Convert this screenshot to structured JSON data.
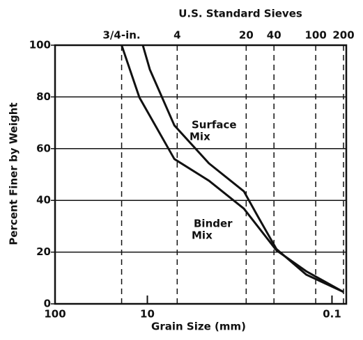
{
  "chart_data": {
    "type": "line",
    "top_title": "U.S. Standard Sieves",
    "x_label": "Grain Size (mm)",
    "y_label": "Percent Finer by Weight",
    "x_log": true,
    "xlim": [
      100,
      0.07
    ],
    "xticks": [
      100,
      10,
      0.1
    ],
    "top_ticks": [
      {
        "value": 19,
        "label": "3/4-in."
      },
      {
        "value": 4.75,
        "label": "4"
      },
      {
        "value": 0.85,
        "label": "20"
      },
      {
        "value": 0.425,
        "label": "40"
      },
      {
        "value": 0.15,
        "label": "100"
      },
      {
        "value": 0.075,
        "label": "200"
      }
    ],
    "ylim": [
      0,
      100
    ],
    "yticks": [
      0,
      20,
      40,
      60,
      80,
      100
    ],
    "grid": true,
    "series": [
      {
        "name": [
          "Surface",
          "Mix"
        ],
        "color": "#111111",
        "x": [
          11.2,
          9.4,
          5.1,
          2.15,
          0.9,
          0.64,
          0.4,
          0.19,
          0.075
        ],
        "values": [
          100,
          90.6,
          69,
          54.3,
          43.5,
          34,
          21.2,
          11.3,
          4.6
        ]
      },
      {
        "name": [
          "Binder",
          "Mix"
        ],
        "color": "#111111",
        "x": [
          19,
          12.2,
          5.1,
          2.15,
          0.9,
          0.4,
          0.19,
          0.075
        ],
        "values": [
          100,
          79.8,
          56,
          47.6,
          36.8,
          20.7,
          12.6,
          4.6
        ]
      }
    ]
  }
}
